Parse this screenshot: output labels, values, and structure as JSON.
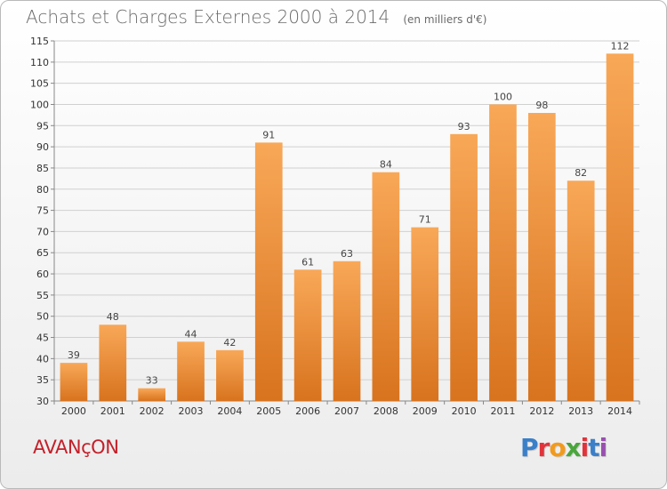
{
  "header": {
    "title": "Achats et Charges Externes 2000 à 2014",
    "subtitle": "(en milliers d'€)"
  },
  "footer": {
    "commune": "AVANçON",
    "logo_text": "Proxiti"
  },
  "colors": {
    "bar_top": "#f8a858",
    "bar_bottom": "#d8731e",
    "grid": "#d0d0d0",
    "commune": "#c4202a",
    "logo_letters": [
      "#3a7fc8",
      "#e2333a",
      "#f29a1d",
      "#4aa63b",
      "#e2333a",
      "#3a7fc8",
      "#9a4fb0"
    ]
  },
  "chart_data": {
    "type": "bar",
    "title": "Achats et Charges Externes 2000 à 2014",
    "subtitle": "(en milliers d'€)",
    "xlabel": "",
    "ylabel": "",
    "categories": [
      "2000",
      "2001",
      "2002",
      "2003",
      "2004",
      "2005",
      "2006",
      "2007",
      "2008",
      "2009",
      "2010",
      "2011",
      "2012",
      "2013",
      "2014"
    ],
    "values": [
      39,
      48,
      33,
      44,
      42,
      91,
      61,
      63,
      84,
      71,
      93,
      100,
      98,
      82,
      112
    ],
    "ylim": [
      30,
      115
    ],
    "yticks": [
      30,
      35,
      40,
      45,
      50,
      55,
      60,
      65,
      70,
      75,
      80,
      85,
      90,
      95,
      100,
      105,
      110,
      115
    ],
    "grid": true,
    "legend": "none"
  }
}
